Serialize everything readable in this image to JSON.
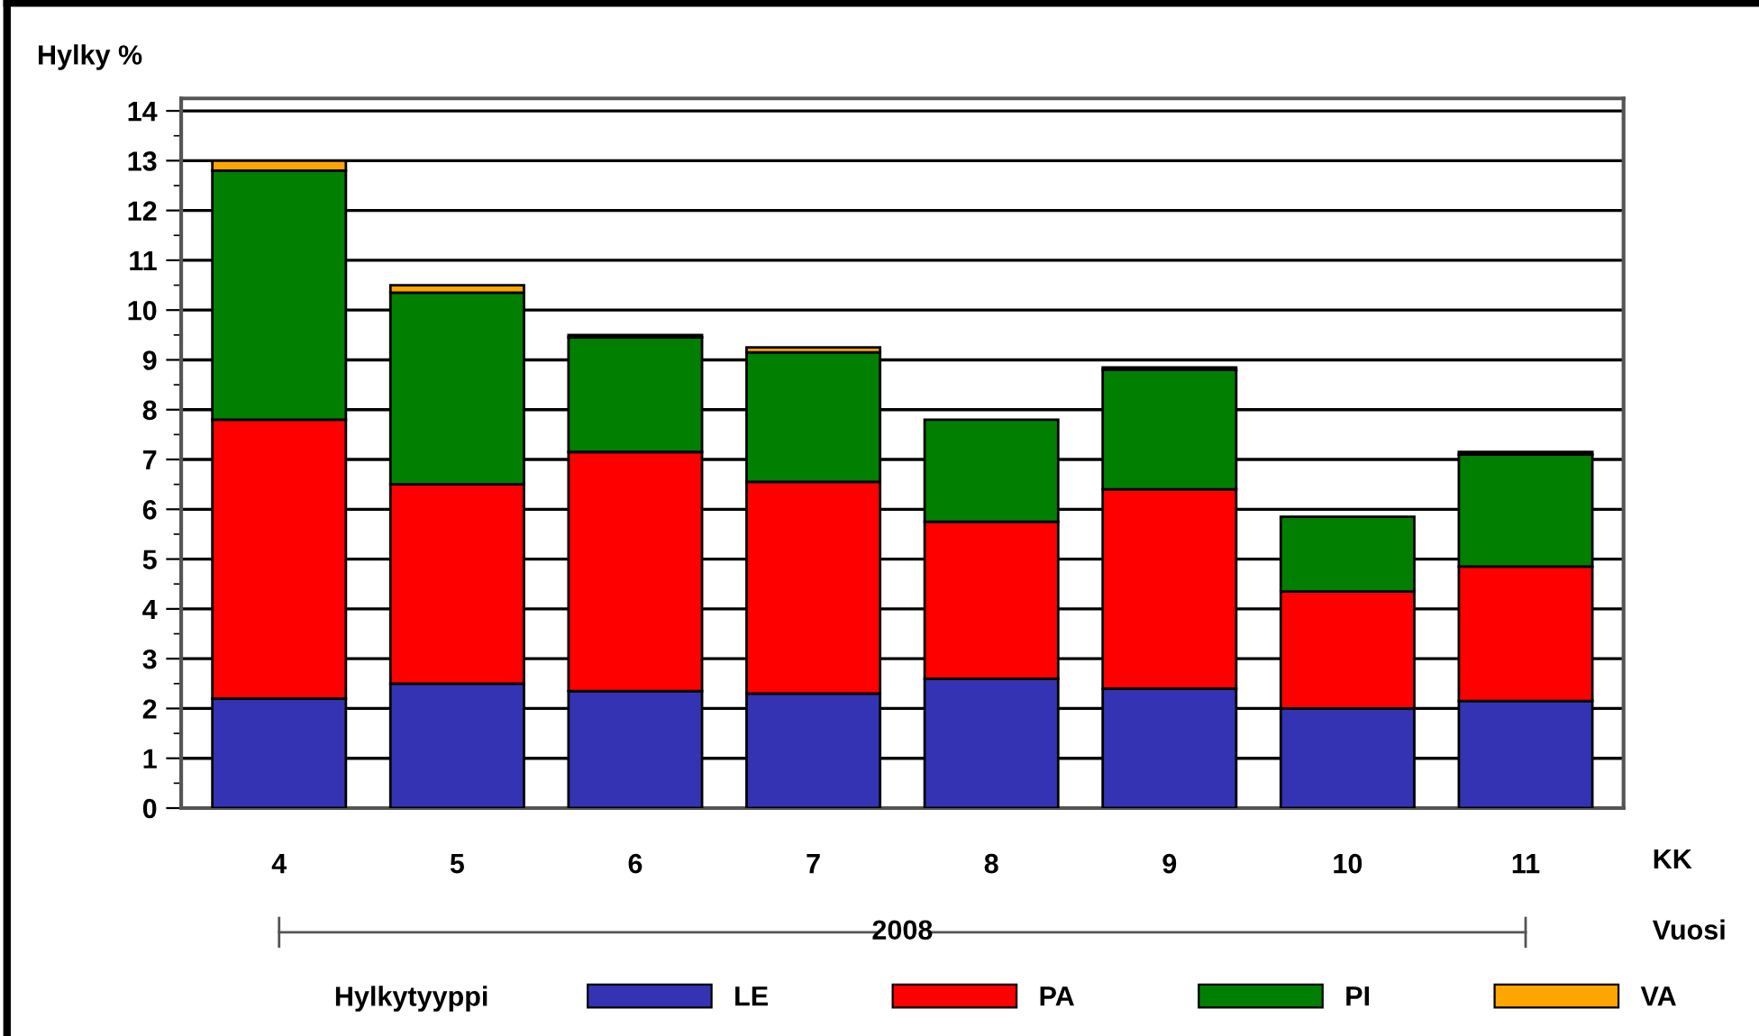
{
  "chart_data": {
    "type": "bar",
    "stacked": true,
    "ylabel": "Hylky %",
    "xlabel": "KK",
    "categories": [
      "4",
      "5",
      "6",
      "7",
      "8",
      "9",
      "10",
      "11"
    ],
    "series": [
      {
        "name": "LE",
        "color": "#3333b3",
        "values": [
          2.2,
          2.5,
          2.35,
          2.3,
          2.6,
          2.4,
          2.0,
          2.15
        ]
      },
      {
        "name": "PA",
        "color": "#ff0000",
        "values": [
          5.6,
          4.0,
          4.8,
          4.25,
          3.15,
          4.0,
          2.35,
          2.7
        ]
      },
      {
        "name": "PI",
        "color": "#007f00",
        "values": [
          5.0,
          3.85,
          2.3,
          2.6,
          2.05,
          2.4,
          1.5,
          2.25
        ]
      },
      {
        "name": "VA",
        "color": "#ffa500",
        "values": [
          0.2,
          0.15,
          0.05,
          0.1,
          null,
          0.05,
          null,
          0.05
        ]
      }
    ],
    "legend_title": "Hylkytyyppi",
    "legend": "bottom",
    "annotations": [
      "2008",
      "Vuosi"
    ],
    "ylim": [
      0,
      14.25
    ],
    "yticks": [
      0,
      1,
      2,
      3,
      4,
      5,
      6,
      7,
      8,
      9,
      10,
      11,
      12,
      13,
      14
    ],
    "grid": "y"
  }
}
